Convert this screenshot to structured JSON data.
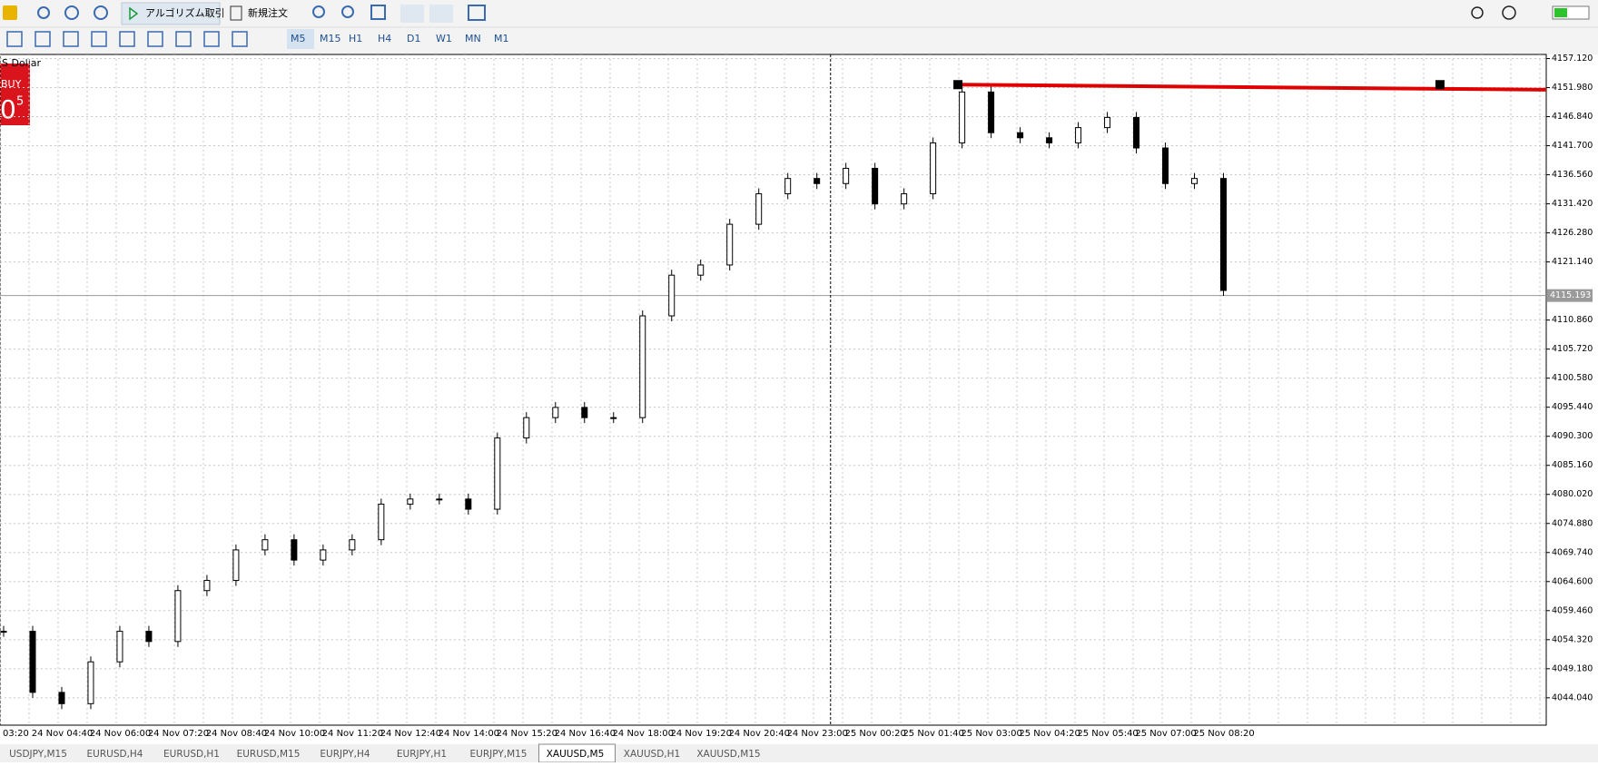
{
  "toolbar": {
    "algo_trading": "アルゴリズム取引",
    "new_order": "新規注文",
    "timeframes": [
      "M5",
      "M15",
      "H1",
      "H4",
      "D1",
      "W1",
      "MN",
      "M1"
    ],
    "active_timeframe": "M5"
  },
  "trade_panel": {
    "symbol": "S Dollar",
    "side": "BUY",
    "price_big": "0",
    "price_small": "5"
  },
  "chart": {
    "type": "candlestick",
    "ylim": [
      4039.2,
      4157.84
    ],
    "yticks": [
      {
        "value": 4157.12,
        "label": "4157.120"
      },
      {
        "value": 4151.98,
        "label": "4151.980"
      },
      {
        "value": 4146.84,
        "label": "4146.840"
      },
      {
        "value": 4141.7,
        "label": "4141.700"
      },
      {
        "value": 4136.56,
        "label": "4136.560"
      },
      {
        "value": 4131.42,
        "label": "4131.420"
      },
      {
        "value": 4126.28,
        "label": "4126.280"
      },
      {
        "value": 4121.14,
        "label": "4121.140"
      },
      {
        "value": 4110.86,
        "label": "4110.860"
      },
      {
        "value": 4105.72,
        "label": "4105.720"
      },
      {
        "value": 4100.58,
        "label": "4100.580"
      },
      {
        "value": 4095.44,
        "label": "4095.440"
      },
      {
        "value": 4090.3,
        "label": "4090.300"
      },
      {
        "value": 4085.16,
        "label": "4085.160"
      },
      {
        "value": 4080.02,
        "label": "4080.020"
      },
      {
        "value": 4074.88,
        "label": "4074.880"
      },
      {
        "value": 4069.74,
        "label": "4069.740"
      },
      {
        "value": 4064.6,
        "label": "4064.600"
      },
      {
        "value": 4059.46,
        "label": "4059.460"
      },
      {
        "value": 4054.32,
        "label": "4054.320"
      },
      {
        "value": 4049.18,
        "label": "4049.180"
      },
      {
        "value": 4044.04,
        "label": "4044.040"
      }
    ],
    "current_price": {
      "value": 4115.193,
      "label": "4115.193"
    },
    "x_labels": [
      "03:20",
      "24 Nov 04:40",
      "24 Nov 06:00",
      "24 Nov 07:20",
      "24 Nov 08:40",
      "24 Nov 10:00",
      "24 Nov 11:20",
      "24 Nov 12:40",
      "24 Nov 14:00",
      "24 Nov 15:20",
      "24 Nov 16:40",
      "24 Nov 18:00",
      "24 Nov 19:20",
      "24 Nov 20:40",
      "24 Nov 23:00",
      "25 Nov 00:20",
      "25 Nov 01:40",
      "25 Nov 03:00",
      "25 Nov 04:20",
      "25 Nov 05:40",
      "25 Nov 07:00",
      "25 Nov 08:20"
    ],
    "closes": [
      4055.8,
      4045,
      4043,
      4050.4,
      4055.8,
      4054,
      4063,
      4064.8,
      4070.2,
      4072,
      4068.4,
      4070.2,
      4072,
      4078.3,
      4079.2,
      4079.2,
      4077.4,
      4090,
      4093.6,
      4095.4,
      4093.6,
      4093.6,
      4111.6,
      4118.8,
      4120.6,
      4127.8,
      4133.2,
      4135.9,
      4135,
      4137.7,
      4131.4,
      4133.2,
      4142.2,
      4151.2,
      4144,
      4143.1,
      4142.2,
      4144.9,
      4146.7,
      4141.3,
      4135,
      4135.9,
      4116.1
    ],
    "trend_line": [
      4152.5,
      4151.6
    ]
  },
  "tabs": [
    "USDJPY,M15",
    "EURUSD,H4",
    "EURUSD,H1",
    "EURUSD,M15",
    "EURJPY,H4",
    "EURJPY,H1",
    "EURJPY,M15",
    "XAUUSD,M5",
    "XAUUSD,H1",
    "XAUUSD,M15"
  ],
  "active_tab": "XAUUSD,M5"
}
